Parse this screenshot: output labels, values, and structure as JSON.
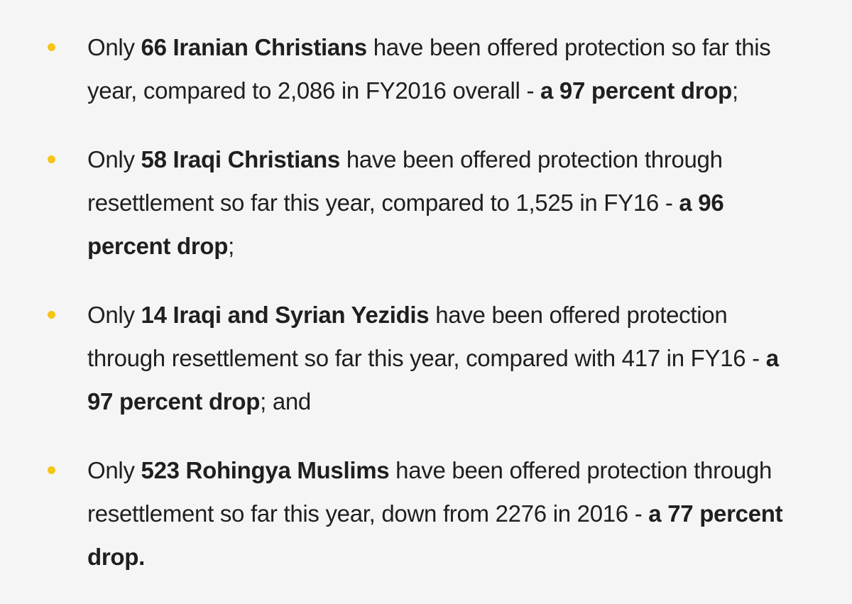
{
  "colors": {
    "background": "#f5f5f5",
    "text": "#1f1f1f",
    "bullet": "#f5c518"
  },
  "bullets": [
    {
      "icon": "bullet-dot",
      "segments": [
        {
          "text": "Only ",
          "bold": false
        },
        {
          "text": "66 Iranian Christians",
          "bold": true
        },
        {
          "text": " have been offered protection so far this year, compared to 2,086 in FY2016 overall - ",
          "bold": false
        },
        {
          "text": "a 97 percent drop",
          "bold": true
        },
        {
          "text": ";",
          "bold": false
        }
      ]
    },
    {
      "icon": "bullet-dot",
      "segments": [
        {
          "text": "Only ",
          "bold": false
        },
        {
          "text": "58 Iraqi Christians",
          "bold": true
        },
        {
          "text": " have been offered protection through resettlement so far this year, compared to 1,525 in FY16 - ",
          "bold": false
        },
        {
          "text": "a 96 percent drop",
          "bold": true
        },
        {
          "text": ";",
          "bold": false
        }
      ]
    },
    {
      "icon": "bullet-dot",
      "segments": [
        {
          "text": "Only ",
          "bold": false
        },
        {
          "text": "14 Iraqi and Syrian Yezidis",
          "bold": true
        },
        {
          "text": " have been offered protection through resettlement so far this year, compared with 417 in FY16 - ",
          "bold": false
        },
        {
          "text": "a 97 percent drop",
          "bold": true
        },
        {
          "text": "; and",
          "bold": false
        }
      ]
    },
    {
      "icon": "bullet-dot",
      "segments": [
        {
          "text": "Only ",
          "bold": false
        },
        {
          "text": "523 Rohingya Muslims",
          "bold": true
        },
        {
          "text": " have been offered protection through resettlement so far this year, down from 2276 in 2016 - ",
          "bold": false
        },
        {
          "text": "a 77 percent drop.",
          "bold": true
        }
      ]
    }
  ]
}
